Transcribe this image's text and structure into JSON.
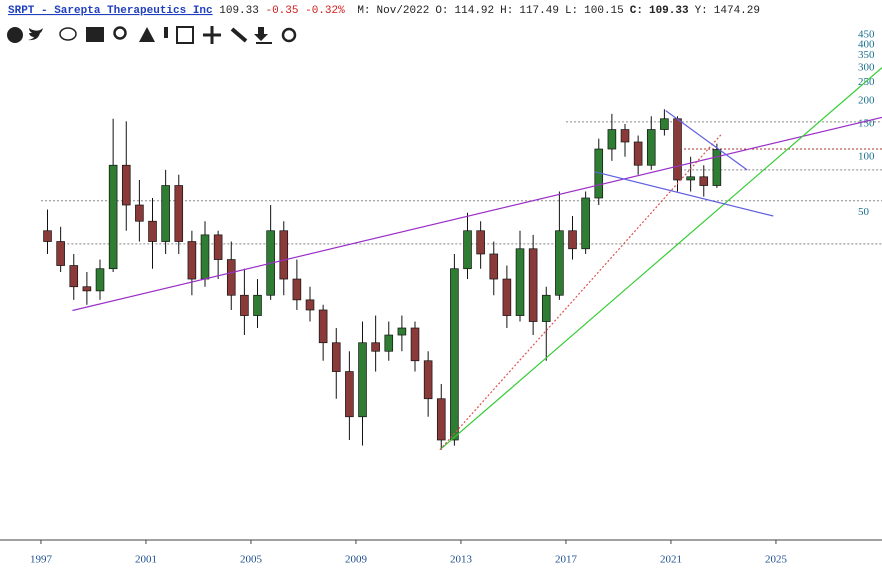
{
  "chart_data": {
    "type": "candlestick",
    "header": {
      "symbol": "SRPT - Sarepta Therapeutics Inc",
      "last": "109.33",
      "change": "-0.35",
      "change_pct": "-0.32%",
      "items": [
        {
          "label": "M:",
          "value": "Nov/2022"
        },
        {
          "label": "O:",
          "value": "114.92"
        },
        {
          "label": "H:",
          "value": "117.49"
        },
        {
          "label": "L:",
          "value": "100.15"
        },
        {
          "label": "C:",
          "value": "109.33"
        },
        {
          "label": "Y:",
          "value": "1474.29"
        }
      ]
    },
    "x": [
      1997.0,
      1997.5,
      1998.0,
      1998.5,
      1999.0,
      1999.5,
      2000.0,
      2000.5,
      2001.0,
      2001.5,
      2002.0,
      2002.5,
      2003.0,
      2003.5,
      2004.0,
      2004.5,
      2005.0,
      2005.5,
      2006.0,
      2006.5,
      2007.0,
      2007.5,
      2008.0,
      2008.5,
      2009.0,
      2009.5,
      2010.0,
      2010.5,
      2011.0,
      2011.5,
      2012.0,
      2012.5,
      2013.0,
      2013.5,
      2014.0,
      2014.5,
      2015.0,
      2015.5,
      2016.0,
      2016.5,
      2017.0,
      2017.5,
      2018.0,
      2018.5,
      2019.0,
      2019.5,
      2020.0,
      2020.5,
      2021.0,
      2021.5,
      2022.0,
      2022.5
    ],
    "open": [
      40,
      35,
      26,
      20,
      19,
      25,
      90,
      55,
      45,
      35,
      70,
      35,
      22,
      38,
      28,
      18,
      14,
      18,
      40,
      22,
      17,
      15,
      10,
      7,
      4,
      10,
      9,
      11,
      12,
      8,
      5,
      3,
      25,
      40,
      30,
      22,
      14,
      32,
      13,
      18,
      40,
      32,
      60,
      110,
      140,
      120,
      90,
      140,
      160,
      75,
      78,
      70
    ],
    "high": [
      52,
      42,
      30,
      24,
      28,
      160,
      155,
      75,
      60,
      85,
      80,
      40,
      45,
      40,
      35,
      25,
      22,
      55,
      45,
      28,
      20,
      16,
      12,
      9,
      13,
      14,
      13,
      14,
      13,
      9,
      6,
      30,
      50,
      45,
      35,
      26,
      40,
      38,
      20,
      65,
      48,
      65,
      125,
      170,
      150,
      130,
      165,
      180,
      165,
      100,
      90,
      117.49
    ],
    "low": [
      30,
      24,
      17,
      16,
      17,
      24,
      40,
      35,
      25,
      30,
      30,
      18,
      20,
      22,
      15,
      11,
      12,
      17,
      18,
      15,
      13,
      8,
      5,
      3,
      2.8,
      7,
      8,
      9,
      7,
      4,
      2.66,
      2.8,
      22,
      25,
      18,
      12,
      13,
      11,
      8,
      17,
      28,
      30,
      55,
      95,
      100,
      80,
      85,
      130,
      65,
      65,
      61,
      68
    ],
    "close": [
      35,
      26,
      20,
      19,
      25,
      90,
      55,
      45,
      35,
      70,
      35,
      22,
      38,
      28,
      18,
      14,
      18,
      40,
      22,
      17,
      15,
      10,
      7,
      4,
      10,
      9,
      11,
      12,
      8,
      5,
      3,
      25,
      40,
      30,
      22,
      14,
      32,
      13,
      18,
      40,
      32,
      60,
      110,
      140,
      120,
      90,
      140,
      160,
      75,
      78,
      70,
      109.33
    ],
    "up_color": "#2e7d32",
    "down_color": "#8b3a3a",
    "xlim": [
      1995.44,
      2029.04
    ],
    "xticks": [
      1997,
      2001,
      2005,
      2009,
      2013,
      2017,
      2021,
      2025
    ],
    "ylim": [
      0.87,
      480
    ],
    "yticks": [
      450,
      400,
      350,
      300,
      250,
      200,
      150,
      100,
      50
    ],
    "log_scale": true,
    "trendlines": [
      {
        "color": "#9b30c8",
        "dash": false,
        "x": [
          1998.2,
          2029.3
        ],
        "y": [
          14.9,
          166
        ]
      },
      {
        "color": "#33cc33",
        "dash": false,
        "x": [
          2012.2,
          2029.3
        ],
        "y": [
          2.66,
          324
        ]
      },
      {
        "color": "#e05050",
        "dash": true,
        "x": [
          2012.2,
          2022.9
        ],
        "y": [
          2.66,
          131
        ]
      },
      {
        "color": "#6060e0",
        "dash": false,
        "x": [
          2020.8,
          2023.9
        ],
        "y": [
          177,
          85
        ]
      },
      {
        "color": "#6060e0",
        "dash": false,
        "x": [
          2018.1,
          2024.9
        ],
        "y": [
          83,
          48
        ]
      }
    ],
    "hlines": [
      {
        "value": 154,
        "from": 2017.0,
        "color": "#888888"
      },
      {
        "value": 110,
        "from": 2021.5,
        "color": "#a03020"
      },
      {
        "value": 85,
        "from": 2021.2,
        "color": "#888888"
      },
      {
        "value": 58,
        "from": 1997.0,
        "color": "#888888"
      },
      {
        "value": 34,
        "from": 1997.7,
        "color": "#888888"
      }
    ]
  }
}
